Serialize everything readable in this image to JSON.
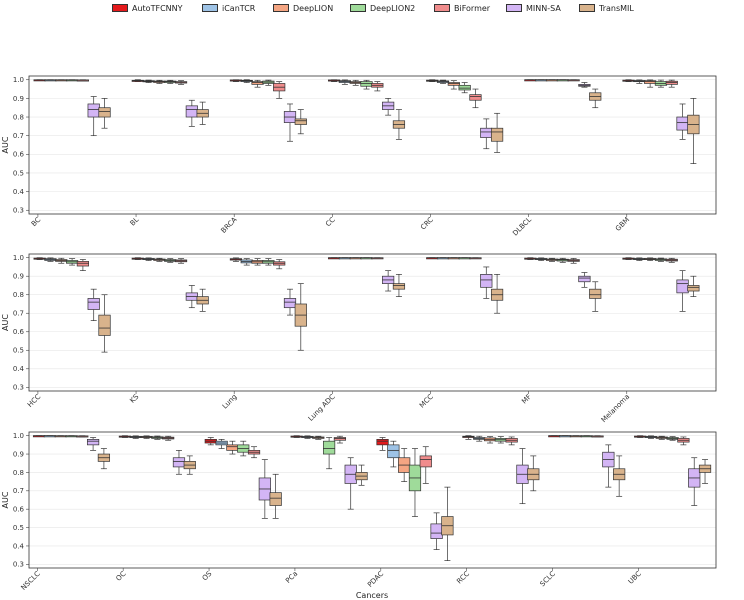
{
  "chart_data": {
    "type": "box",
    "x_title": "Cancers",
    "y_title": "AUC",
    "y_ticks": [
      "0.3",
      "0.4",
      "0.5",
      "0.6",
      "0.7",
      "0.8",
      "0.9",
      "1.0"
    ],
    "ylim": [
      0.28,
      1.02
    ],
    "models": [
      {
        "name": "AutoTFCNNY",
        "color": "#e41a1c"
      },
      {
        "name": "iCanTCR",
        "color": "#9ec3e6"
      },
      {
        "name": "DeepLION",
        "color": "#f4a582"
      },
      {
        "name": "DeepLION2",
        "color": "#9fdb9a"
      },
      {
        "name": "BiFormer",
        "color": "#f08c8c"
      },
      {
        "name": "MINN-SA",
        "color": "#d3b5f5"
      },
      {
        "name": "TransMIL",
        "color": "#d9b38c"
      }
    ],
    "panels": [
      {
        "cancers": [
          "BC",
          "BL",
          "BRCA",
          "CC",
          "CRC",
          "DLBCL",
          "GBM"
        ]
      },
      {
        "cancers": [
          "HCC",
          "KS",
          "Lung",
          "Lung ADC",
          "MCC",
          "MF",
          "Melanoma"
        ]
      },
      {
        "cancers": [
          "NSCLC",
          "OC",
          "OS",
          "PCa",
          "PDAC",
          "RCC",
          "SCLC",
          "UBC"
        ]
      }
    ],
    "boxes": {
      "BC": [
        [
          0.997,
          0.998,
          0.999,
          1.0,
          1.0
        ],
        [
          0.997,
          0.998,
          0.999,
          1.0,
          1.0
        ],
        [
          0.996,
          0.998,
          0.999,
          1.0,
          1.0
        ],
        [
          0.996,
          0.998,
          0.999,
          1.0,
          1.0
        ],
        [
          0.995,
          0.997,
          0.998,
          0.999,
          1.0
        ],
        [
          0.7,
          0.8,
          0.84,
          0.87,
          0.91
        ],
        [
          0.74,
          0.8,
          0.83,
          0.85,
          0.9
        ]
      ],
      "BL": [
        [
          0.99,
          0.993,
          0.995,
          0.997,
          1.0
        ],
        [
          0.985,
          0.99,
          0.992,
          0.995,
          0.998
        ],
        [
          0.98,
          0.985,
          0.99,
          0.993,
          0.997
        ],
        [
          0.98,
          0.985,
          0.99,
          0.993,
          0.997
        ],
        [
          0.975,
          0.982,
          0.987,
          0.99,
          0.995
        ],
        [
          0.75,
          0.8,
          0.84,
          0.86,
          0.89
        ],
        [
          0.76,
          0.8,
          0.82,
          0.84,
          0.88
        ]
      ],
      "BRCA": [
        [
          0.99,
          0.995,
          0.997,
          0.999,
          1.0
        ],
        [
          0.985,
          0.99,
          0.994,
          0.997,
          1.0
        ],
        [
          0.96,
          0.975,
          0.985,
          0.99,
          0.997
        ],
        [
          0.97,
          0.98,
          0.987,
          0.993,
          0.998
        ],
        [
          0.9,
          0.94,
          0.96,
          0.98,
          0.99
        ],
        [
          0.67,
          0.77,
          0.8,
          0.83,
          0.87
        ],
        [
          0.71,
          0.76,
          0.78,
          0.79,
          0.84
        ]
      ],
      "CC": [
        [
          0.99,
          0.994,
          0.997,
          0.999,
          1.0
        ],
        [
          0.975,
          0.985,
          0.99,
          0.995,
          0.999
        ],
        [
          0.97,
          0.98,
          0.985,
          0.99,
          0.997
        ],
        [
          0.95,
          0.965,
          0.98,
          0.99,
          0.997
        ],
        [
          0.94,
          0.96,
          0.97,
          0.98,
          0.99
        ],
        [
          0.81,
          0.84,
          0.86,
          0.88,
          0.9
        ],
        [
          0.68,
          0.74,
          0.76,
          0.78,
          0.84
        ]
      ],
      "CRC": [
        [
          0.99,
          0.993,
          0.995,
          0.998,
          1.0
        ],
        [
          0.98,
          0.985,
          0.99,
          0.994,
          0.998
        ],
        [
          0.95,
          0.97,
          0.98,
          0.985,
          0.995
        ],
        [
          0.93,
          0.945,
          0.955,
          0.97,
          0.985
        ],
        [
          0.85,
          0.89,
          0.91,
          0.92,
          0.95
        ],
        [
          0.63,
          0.69,
          0.72,
          0.74,
          0.79
        ],
        [
          0.61,
          0.67,
          0.72,
          0.74,
          0.82
        ]
      ],
      "DLBCL": [
        [
          0.999,
          0.999,
          1.0,
          1.0,
          1.0
        ],
        [
          0.999,
          0.999,
          1.0,
          1.0,
          1.0
        ],
        [
          0.998,
          0.999,
          1.0,
          1.0,
          1.0
        ],
        [
          0.998,
          0.999,
          1.0,
          1.0,
          1.0
        ],
        [
          0.997,
          0.998,
          0.999,
          1.0,
          1.0
        ],
        [
          0.96,
          0.965,
          0.97,
          0.975,
          0.985
        ],
        [
          0.85,
          0.89,
          0.91,
          0.93,
          0.95
        ]
      ],
      "GBM": [
        [
          0.99,
          0.993,
          0.996,
          0.998,
          1.0
        ],
        [
          0.98,
          0.99,
          0.993,
          0.996,
          0.999
        ],
        [
          0.96,
          0.98,
          0.99,
          0.995,
          0.999
        ],
        [
          0.96,
          0.97,
          0.98,
          0.99,
          0.998
        ],
        [
          0.96,
          0.975,
          0.985,
          0.992,
          0.998
        ],
        [
          0.68,
          0.73,
          0.77,
          0.8,
          0.87
        ],
        [
          0.55,
          0.71,
          0.76,
          0.81,
          0.9
        ]
      ],
      "HCC": [
        [
          0.99,
          0.993,
          0.996,
          0.998,
          1.0
        ],
        [
          0.98,
          0.985,
          0.99,
          0.995,
          0.999
        ],
        [
          0.97,
          0.98,
          0.985,
          0.99,
          0.997
        ],
        [
          0.96,
          0.97,
          0.978,
          0.985,
          0.995
        ],
        [
          0.93,
          0.955,
          0.97,
          0.98,
          0.99
        ],
        [
          0.66,
          0.72,
          0.76,
          0.78,
          0.83
        ],
        [
          0.49,
          0.58,
          0.62,
          0.69,
          0.8
        ]
      ],
      "KS": [
        [
          0.99,
          0.994,
          0.996,
          0.998,
          1.0
        ],
        [
          0.985,
          0.99,
          0.993,
          0.996,
          0.999
        ],
        [
          0.98,
          0.985,
          0.99,
          0.993,
          0.997
        ],
        [
          0.975,
          0.98,
          0.985,
          0.99,
          0.995
        ],
        [
          0.97,
          0.978,
          0.983,
          0.988,
          0.995
        ],
        [
          0.73,
          0.77,
          0.79,
          0.81,
          0.85
        ],
        [
          0.71,
          0.75,
          0.77,
          0.79,
          0.83
        ]
      ],
      "Lung": [
        [
          0.98,
          0.987,
          0.992,
          0.995,
          0.999
        ],
        [
          0.96,
          0.972,
          0.98,
          0.988,
          0.995
        ],
        [
          0.96,
          0.97,
          0.978,
          0.985,
          0.995
        ],
        [
          0.96,
          0.97,
          0.978,
          0.985,
          0.995
        ],
        [
          0.94,
          0.96,
          0.97,
          0.978,
          0.99
        ],
        [
          0.69,
          0.73,
          0.76,
          0.78,
          0.83
        ],
        [
          0.5,
          0.63,
          0.69,
          0.75,
          0.86
        ]
      ],
      "Lung ADC": [
        [
          0.998,
          0.999,
          1.0,
          1.0,
          1.0
        ],
        [
          0.998,
          0.999,
          1.0,
          1.0,
          1.0
        ],
        [
          0.998,
          0.999,
          1.0,
          1.0,
          1.0
        ],
        [
          0.998,
          0.999,
          1.0,
          1.0,
          1.0
        ],
        [
          0.997,
          0.998,
          0.999,
          1.0,
          1.0
        ],
        [
          0.82,
          0.86,
          0.88,
          0.9,
          0.93
        ],
        [
          0.79,
          0.83,
          0.85,
          0.86,
          0.91
        ]
      ],
      "MCC": [
        [
          0.998,
          0.999,
          1.0,
          1.0,
          1.0
        ],
        [
          0.998,
          0.999,
          1.0,
          1.0,
          1.0
        ],
        [
          0.998,
          0.999,
          1.0,
          1.0,
          1.0
        ],
        [
          0.998,
          0.999,
          1.0,
          1.0,
          1.0
        ],
        [
          0.997,
          0.998,
          0.999,
          1.0,
          1.0
        ],
        [
          0.78,
          0.84,
          0.88,
          0.91,
          0.95
        ],
        [
          0.7,
          0.77,
          0.8,
          0.83,
          0.91
        ]
      ],
      "MF": [
        [
          0.99,
          0.994,
          0.996,
          0.998,
          1.0
        ],
        [
          0.985,
          0.99,
          0.993,
          0.996,
          0.999
        ],
        [
          0.98,
          0.985,
          0.99,
          0.993,
          0.997
        ],
        [
          0.975,
          0.982,
          0.988,
          0.992,
          0.997
        ],
        [
          0.97,
          0.98,
          0.985,
          0.99,
          0.996
        ],
        [
          0.84,
          0.87,
          0.89,
          0.9,
          0.92
        ],
        [
          0.71,
          0.78,
          0.8,
          0.83,
          0.87
        ]
      ],
      "Melanoma": [
        [
          0.99,
          0.994,
          0.996,
          0.998,
          1.0
        ],
        [
          0.985,
          0.99,
          0.993,
          0.996,
          0.999
        ],
        [
          0.985,
          0.99,
          0.993,
          0.996,
          0.999
        ],
        [
          0.98,
          0.985,
          0.99,
          0.994,
          0.998
        ],
        [
          0.975,
          0.982,
          0.987,
          0.992,
          0.997
        ],
        [
          0.71,
          0.81,
          0.86,
          0.88,
          0.93
        ],
        [
          0.79,
          0.82,
          0.84,
          0.85,
          0.9
        ]
      ],
      "NSCLC": [
        [
          0.998,
          0.999,
          1.0,
          1.0,
          1.0
        ],
        [
          0.998,
          0.999,
          1.0,
          1.0,
          1.0
        ],
        [
          0.997,
          0.998,
          0.999,
          1.0,
          1.0
        ],
        [
          0.997,
          0.998,
          0.999,
          1.0,
          1.0
        ],
        [
          0.993,
          0.996,
          0.998,
          0.999,
          1.0
        ],
        [
          0.92,
          0.95,
          0.97,
          0.98,
          0.99
        ],
        [
          0.82,
          0.86,
          0.88,
          0.9,
          0.93
        ]
      ],
      "OC": [
        [
          0.99,
          0.994,
          0.996,
          0.998,
          1.0
        ],
        [
          0.985,
          0.99,
          0.993,
          0.996,
          0.999
        ],
        [
          0.985,
          0.99,
          0.993,
          0.996,
          0.999
        ],
        [
          0.98,
          0.985,
          0.99,
          0.994,
          0.998
        ],
        [
          0.975,
          0.982,
          0.987,
          0.992,
          0.997
        ],
        [
          0.79,
          0.83,
          0.86,
          0.88,
          0.92
        ],
        [
          0.79,
          0.82,
          0.84,
          0.86,
          0.89
        ]
      ],
      "OS": [
        [
          0.95,
          0.96,
          0.97,
          0.98,
          0.99
        ],
        [
          0.93,
          0.95,
          0.96,
          0.97,
          0.98
        ],
        [
          0.9,
          0.92,
          0.94,
          0.95,
          0.97
        ],
        [
          0.89,
          0.91,
          0.93,
          0.95,
          0.97
        ],
        [
          0.88,
          0.9,
          0.91,
          0.92,
          0.94
        ],
        [
          0.55,
          0.65,
          0.71,
          0.77,
          0.87
        ],
        [
          0.55,
          0.62,
          0.66,
          0.69,
          0.79
        ]
      ],
      "PCa": [
        [
          0.99,
          0.994,
          0.996,
          0.998,
          1.0
        ],
        [
          0.985,
          0.99,
          0.993,
          0.996,
          0.999
        ],
        [
          0.98,
          0.985,
          0.99,
          0.993,
          0.997
        ],
        [
          0.82,
          0.9,
          0.93,
          0.97,
          0.99
        ],
        [
          0.96,
          0.975,
          0.985,
          0.99,
          0.997
        ],
        [
          0.6,
          0.74,
          0.79,
          0.84,
          0.88
        ],
        [
          0.73,
          0.76,
          0.78,
          0.8,
          0.84
        ]
      ],
      "PDAC": [
        [
          0.92,
          0.95,
          0.97,
          0.98,
          0.99
        ],
        [
          0.83,
          0.88,
          0.92,
          0.95,
          0.97
        ],
        [
          0.75,
          0.8,
          0.84,
          0.88,
          0.93
        ],
        [
          0.56,
          0.7,
          0.77,
          0.84,
          0.93
        ],
        [
          0.74,
          0.83,
          0.87,
          0.89,
          0.94
        ],
        [
          0.38,
          0.44,
          0.47,
          0.52,
          0.58
        ],
        [
          0.32,
          0.46,
          0.51,
          0.56,
          0.72
        ]
      ],
      "RCC": [
        [
          0.98,
          0.99,
          0.994,
          0.997,
          1.0
        ],
        [
          0.97,
          0.98,
          0.985,
          0.99,
          0.997
        ],
        [
          0.96,
          0.972,
          0.98,
          0.988,
          0.995
        ],
        [
          0.96,
          0.97,
          0.978,
          0.985,
          0.995
        ],
        [
          0.95,
          0.965,
          0.975,
          0.985,
          0.993
        ],
        [
          0.63,
          0.74,
          0.79,
          0.84,
          0.93
        ],
        [
          0.7,
          0.76,
          0.79,
          0.82,
          0.89
        ]
      ],
      "SCLC": [
        [
          0.998,
          0.999,
          1.0,
          1.0,
          1.0
        ],
        [
          0.998,
          0.999,
          1.0,
          1.0,
          1.0
        ],
        [
          0.997,
          0.998,
          0.999,
          1.0,
          1.0
        ],
        [
          0.997,
          0.998,
          0.999,
          1.0,
          1.0
        ],
        [
          0.994,
          0.996,
          0.998,
          0.999,
          1.0
        ],
        [
          0.72,
          0.83,
          0.87,
          0.91,
          0.95
        ],
        [
          0.67,
          0.76,
          0.79,
          0.82,
          0.89
        ]
      ],
      "UBC": [
        [
          0.99,
          0.994,
          0.996,
          0.998,
          1.0
        ],
        [
          0.985,
          0.99,
          0.993,
          0.996,
          0.999
        ],
        [
          0.98,
          0.985,
          0.99,
          0.993,
          0.997
        ],
        [
          0.975,
          0.98,
          0.985,
          0.99,
          0.995
        ],
        [
          0.95,
          0.965,
          0.975,
          0.985,
          0.993
        ],
        [
          0.62,
          0.72,
          0.77,
          0.82,
          0.88
        ],
        [
          0.74,
          0.8,
          0.82,
          0.84,
          0.87
        ]
      ]
    }
  }
}
